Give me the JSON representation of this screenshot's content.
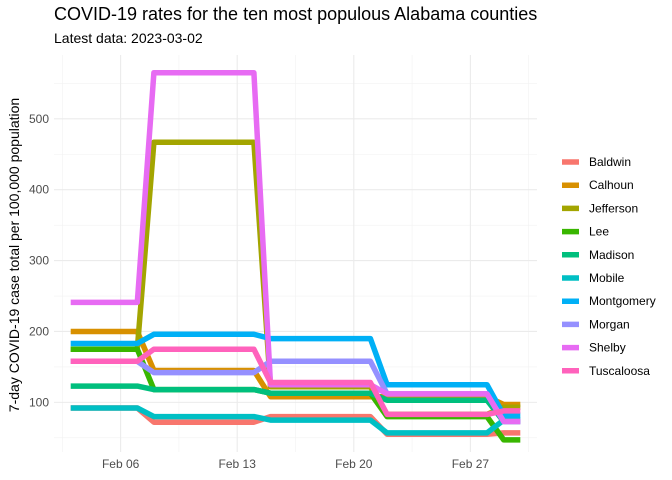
{
  "chart_data": {
    "type": "line",
    "title": "COVID-19 rates for the ten most populous Alabama counties",
    "subtitle": "Latest data: 2023-03-02",
    "xlabel": "",
    "ylabel": "7-day COVID-19 case total per 100,000 population",
    "x_ticks": [
      {
        "date": "2023-02-06",
        "label": "Feb 06"
      },
      {
        "date": "2023-02-13",
        "label": "Feb 13"
      },
      {
        "date": "2023-02-20",
        "label": "Feb 20"
      },
      {
        "date": "2023-02-27",
        "label": "Feb 27"
      }
    ],
    "y_ticks": [
      100,
      200,
      300,
      400,
      500
    ],
    "xlim": [
      "2023-02-02",
      "2023-03-03"
    ],
    "ylim": [
      30,
      590
    ],
    "grid": true,
    "legend_position": "right",
    "x": [
      "2023-02-03",
      "2023-02-07",
      "2023-02-08",
      "2023-02-13",
      "2023-02-14",
      "2023-02-15",
      "2023-02-20",
      "2023-02-21",
      "2023-02-22",
      "2023-02-27",
      "2023-02-28",
      "2023-03-01",
      "2023-03-02"
    ],
    "series": [
      {
        "name": "Baldwin",
        "color": "#F8766D",
        "values": [
          92,
          92,
          72,
          72,
          72,
          80,
          80,
          80,
          55,
          55,
          55,
          57,
          57
        ]
      },
      {
        "name": "Calhoun",
        "color": "#D89000",
        "values": [
          200,
          200,
          145,
          145,
          145,
          108,
          108,
          108,
          108,
          108,
          108,
          97,
          97
        ]
      },
      {
        "name": "Jefferson",
        "color": "#A3A500",
        "values": [
          175,
          175,
          467,
          467,
          467,
          122,
          122,
          122,
          83,
          83,
          83,
          93,
          93
        ]
      },
      {
        "name": "Lee",
        "color": "#39B600",
        "values": [
          175,
          175,
          118,
          118,
          118,
          113,
          113,
          113,
          80,
          80,
          80,
          47,
          47
        ]
      },
      {
        "name": "Madison",
        "color": "#00BF7D",
        "values": [
          123,
          123,
          118,
          118,
          118,
          113,
          113,
          113,
          103,
          103,
          103,
          73,
          73
        ]
      },
      {
        "name": "Mobile",
        "color": "#00BFC4",
        "values": [
          92,
          92,
          80,
          80,
          80,
          75,
          75,
          75,
          57,
          57,
          57,
          75,
          75
        ]
      },
      {
        "name": "Montgomery",
        "color": "#00B0F6",
        "values": [
          183,
          183,
          196,
          196,
          196,
          190,
          190,
          190,
          125,
          125,
          125,
          82,
          82
        ]
      },
      {
        "name": "Morgan",
        "color": "#9590FF",
        "values": [
          158,
          158,
          142,
          142,
          142,
          158,
          158,
          158,
          112,
          112,
          112,
          73,
          73
        ]
      },
      {
        "name": "Shelby",
        "color": "#E76BF3",
        "values": [
          241,
          241,
          565,
          565,
          565,
          125,
          125,
          125,
          112,
          112,
          112,
          73,
          73
        ]
      },
      {
        "name": "Tuscaloosa",
        "color": "#FF62BC",
        "values": [
          158,
          158,
          175,
          175,
          175,
          128,
          128,
          128,
          83,
          83,
          83,
          88,
          88
        ]
      }
    ]
  }
}
